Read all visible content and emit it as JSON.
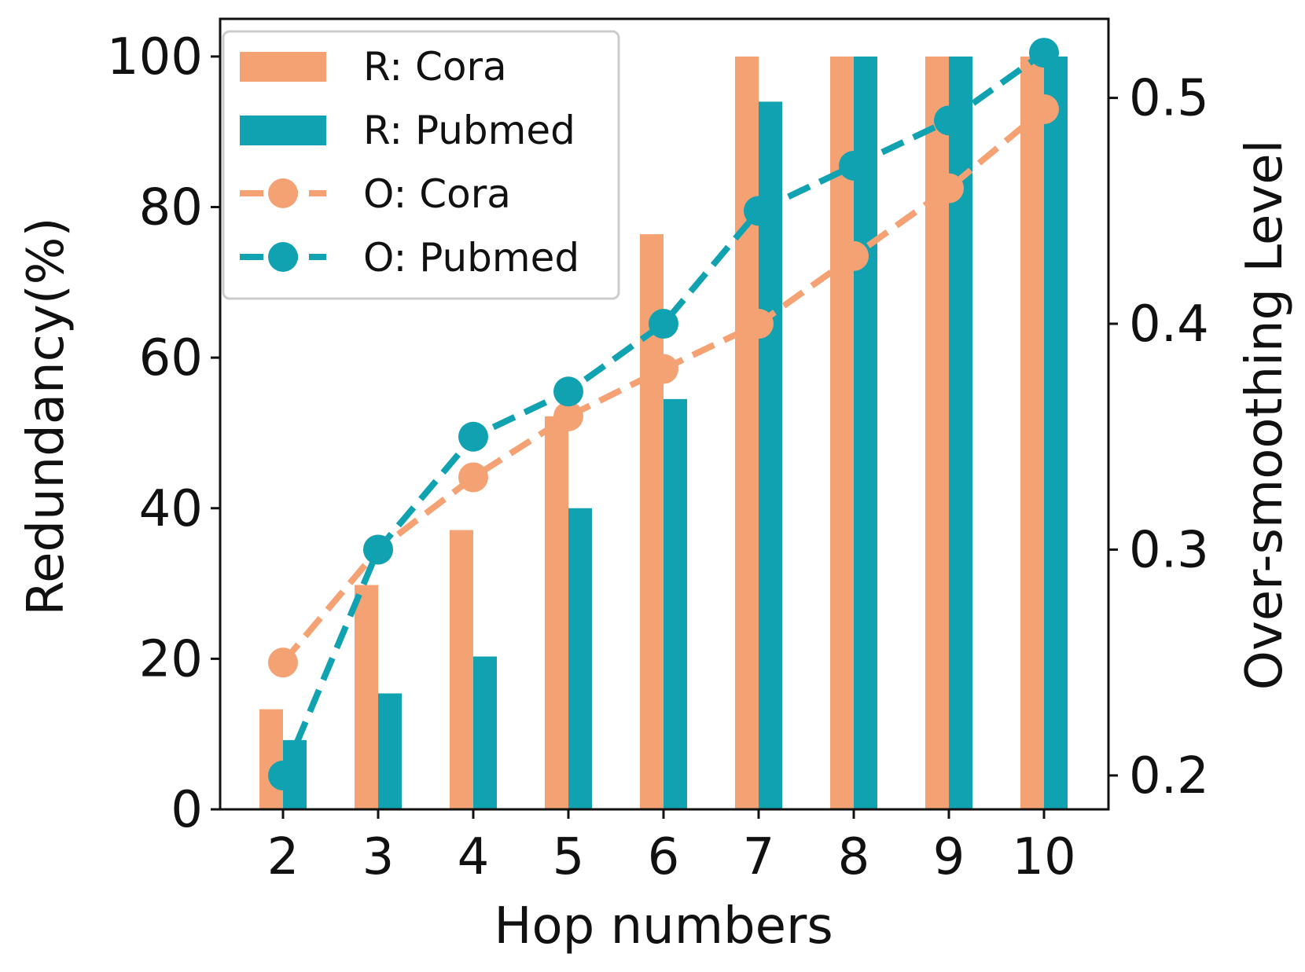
{
  "chart_data": {
    "type": "bar+line",
    "categories": [
      "2",
      "3",
      "4",
      "5",
      "6",
      "7",
      "8",
      "9",
      "10"
    ],
    "xlabel": "Hop numbers",
    "ylabel_left": "Redundancy(%)",
    "ylabel_right": "Over-smoothing Level",
    "ylim_left": [
      0,
      105
    ],
    "ylim_right": [
      0.185,
      0.535
    ],
    "left_ticks": [
      0,
      20,
      40,
      60,
      80,
      100
    ],
    "right_ticks": [
      0.2,
      0.3,
      0.4,
      0.5
    ],
    "right_tick_labels": [
      "0.2",
      "0.3",
      "0.4",
      "0.5"
    ],
    "legend_position": "upper-left",
    "bar_series": [
      {
        "name": "R: Cora",
        "color": "#f4a273",
        "values": [
          13.3,
          29.8,
          37.1,
          52.2,
          76.4,
          100,
          100,
          100,
          100
        ]
      },
      {
        "name": "R: Pubmed",
        "color": "#11a2b1",
        "values": [
          9.2,
          15.4,
          20.3,
          40.0,
          54.5,
          94.0,
          100,
          100,
          100
        ]
      }
    ],
    "line_series": [
      {
        "name": "O: Cora",
        "color": "#f4a273",
        "style": "dashed",
        "marker": "circle",
        "values": [
          0.25,
          0.3,
          0.332,
          0.359,
          0.38,
          0.4,
          0.43,
          0.46,
          0.495
        ]
      },
      {
        "name": "O: Pubmed",
        "color": "#11a2b1",
        "style": "dashed",
        "marker": "circle",
        "values": [
          0.2,
          0.3,
          0.35,
          0.37,
          0.4,
          0.45,
          0.47,
          0.49,
          0.52
        ]
      }
    ]
  }
}
